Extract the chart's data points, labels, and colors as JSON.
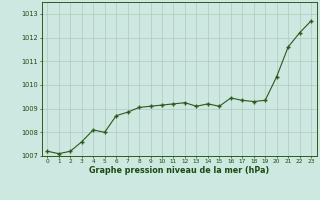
{
  "x": [
    0,
    1,
    2,
    3,
    4,
    5,
    6,
    7,
    8,
    9,
    10,
    11,
    12,
    13,
    14,
    15,
    16,
    17,
    18,
    19,
    20,
    21,
    22,
    23
  ],
  "y": [
    1007.2,
    1007.1,
    1007.2,
    1007.6,
    1008.1,
    1008.0,
    1008.7,
    1008.85,
    1009.05,
    1009.1,
    1009.15,
    1009.2,
    1009.25,
    1009.1,
    1009.2,
    1009.1,
    1009.45,
    1009.35,
    1009.3,
    1009.35,
    1010.35,
    1011.6,
    1012.2,
    1012.7
  ],
  "line_color": "#2d5a1b",
  "marker_color": "#2d5a1b",
  "bg_color": "#cce8e0",
  "grid_major_color": "#b0c8c0",
  "grid_minor_color": "#b0c8c0",
  "xlabel": "Graphe pression niveau de la mer (hPa)",
  "xlabel_color": "#1a4a10",
  "tick_color": "#1a4a10",
  "ylim": [
    1007.0,
    1013.5
  ],
  "xlim": [
    -0.5,
    23.5
  ],
  "yticks": [
    1007,
    1008,
    1009,
    1010,
    1011,
    1012,
    1013
  ],
  "xticks": [
    0,
    1,
    2,
    3,
    4,
    5,
    6,
    7,
    8,
    9,
    10,
    11,
    12,
    13,
    14,
    15,
    16,
    17,
    18,
    19,
    20,
    21,
    22,
    23
  ],
  "spine_color": "#2d5a1b"
}
